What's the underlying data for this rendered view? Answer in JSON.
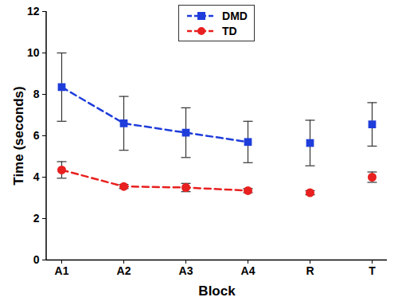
{
  "chart_data": {
    "type": "line",
    "x_label": "Block",
    "y_label": "Time (seconds)",
    "categories": [
      "A1",
      "A2",
      "A3",
      "A4",
      "R",
      "T"
    ],
    "ylim": [
      0,
      12
    ],
    "yticks": [
      0,
      2,
      4,
      6,
      8,
      10,
      12
    ],
    "legend": "top",
    "series": [
      {
        "name": "DMD",
        "type": "line",
        "color": "#1f3ddb",
        "marker": "square",
        "line_style": "dashed",
        "values": [
          8.35,
          6.6,
          6.15,
          5.7,
          null,
          null
        ],
        "error": [
          1.65,
          1.3,
          1.2,
          1.0,
          null,
          null
        ]
      },
      {
        "name": "DMD",
        "type": "scatter",
        "color": "#1f3ddb",
        "marker": "square",
        "values": [
          null,
          null,
          null,
          null,
          5.65,
          6.55
        ],
        "error": [
          null,
          null,
          null,
          null,
          1.1,
          1.05
        ]
      },
      {
        "name": "TD",
        "type": "line",
        "color": "#e8201f",
        "marker": "circle",
        "line_style": "dashed",
        "values": [
          4.35,
          3.55,
          3.5,
          3.35,
          null,
          null
        ],
        "error": [
          0.4,
          0.1,
          0.2,
          0.1,
          null,
          null
        ]
      },
      {
        "name": "TD",
        "type": "scatter",
        "color": "#e8201f",
        "marker": "circle",
        "values": [
          null,
          null,
          null,
          null,
          3.25,
          4.0
        ],
        "error": [
          null,
          null,
          null,
          null,
          0.1,
          0.25
        ]
      }
    ]
  }
}
